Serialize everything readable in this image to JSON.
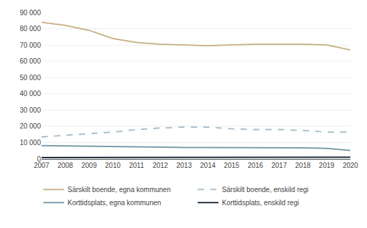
{
  "chart_data": {
    "type": "line",
    "x": [
      2007,
      2008,
      2009,
      2010,
      2011,
      2012,
      2013,
      2014,
      2015,
      2016,
      2017,
      2018,
      2019,
      2020
    ],
    "series": [
      {
        "name": "Särskilt boende, egna kommunen",
        "color": "#c8b48a",
        "line_style": "solid",
        "values": [
          84000,
          82000,
          79000,
          74000,
          71500,
          70500,
          70000,
          69500,
          70000,
          70500,
          70500,
          70500,
          70000,
          67000
        ]
      },
      {
        "name": "Särskilt boende, enskild regi",
        "color": "#a8bfcc",
        "line_style": "dashed",
        "values": [
          13500,
          14500,
          15500,
          16500,
          18000,
          19000,
          19500,
          19500,
          18500,
          18000,
          18000,
          17500,
          16500,
          16500
        ]
      },
      {
        "name": "Korttidsplats, egna kommunen",
        "color": "#7a9bab",
        "line_style": "solid",
        "values": [
          8200,
          8000,
          7800,
          7500,
          7200,
          7000,
          7000,
          7000,
          7000,
          6800,
          6800,
          6800,
          6500,
          5200
        ]
      },
      {
        "name": "Korttidsplats, enskild regi",
        "color": "#1e2d3d",
        "line_style": "solid",
        "values": [
          900,
          900,
          900,
          900,
          900,
          900,
          900,
          900,
          900,
          900,
          900,
          900,
          900,
          1100
        ]
      }
    ],
    "xlim": [
      2007,
      2020
    ],
    "xticks": [
      2007,
      2008,
      2009,
      2010,
      2011,
      2012,
      2013,
      2014,
      2015,
      2016,
      2017,
      2018,
      2019,
      2020
    ],
    "ylim": [
      0,
      90000
    ],
    "yticks": [
      0,
      {
        "value": 10000,
        "label": "10 000"
      },
      {
        "value": 20000,
        "label": "20 000"
      },
      {
        "value": 30000,
        "label": "30 000"
      },
      {
        "value": 40000,
        "label": "40 000"
      },
      {
        "value": 50000,
        "label": "50 000"
      },
      {
        "value": 60000,
        "label": "60 000"
      },
      {
        "value": 70000,
        "label": "70 000"
      },
      {
        "value": 80000,
        "label": "80 000"
      },
      {
        "value": 90000,
        "label": "90 000"
      }
    ],
    "grid": true,
    "legend": "bottom"
  }
}
